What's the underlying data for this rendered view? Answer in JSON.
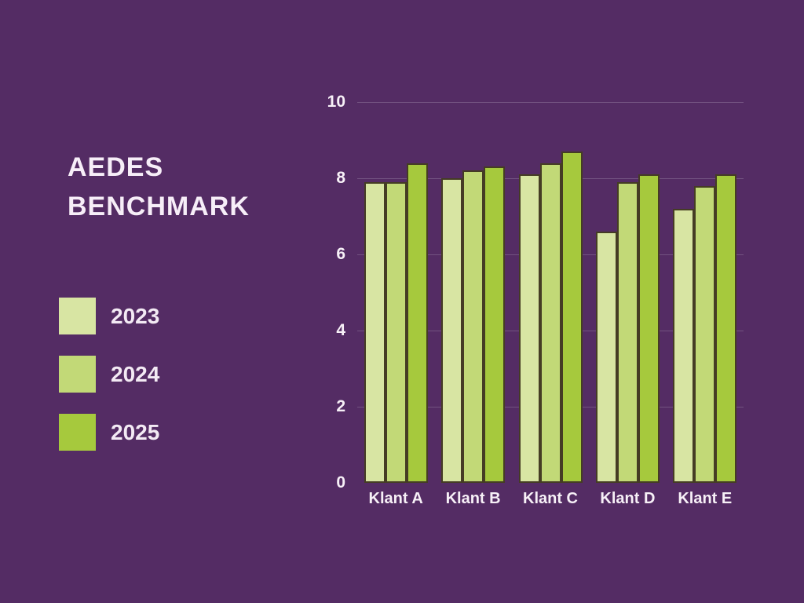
{
  "app": {
    "background_color": "#542c64",
    "text_color": "#f7f0f7"
  },
  "header": {
    "title": "AEDES BENCHMARK",
    "title_lines": [
      "AEDES",
      "BENCHMARK"
    ]
  },
  "chart_data": {
    "type": "bar",
    "title": "AEDES BENCHMARK",
    "categories": [
      "Klant A",
      "Klant B",
      "Klant C",
      "Klant D",
      "Klant E"
    ],
    "series": [
      {
        "name": "2023",
        "color": "#d8e5a3",
        "values": [
          7.9,
          8.0,
          8.1,
          6.6,
          7.2
        ]
      },
      {
        "name": "2024",
        "color": "#c2d977",
        "values": [
          7.9,
          8.2,
          8.4,
          7.9,
          7.8
        ]
      },
      {
        "name": "2025",
        "color": "#a6c93d",
        "values": [
          8.4,
          8.3,
          8.7,
          8.1,
          8.1
        ]
      }
    ],
    "xlabel": "",
    "ylabel": "",
    "ylim": [
      0,
      10
    ],
    "yticks": [
      0,
      2,
      4,
      6,
      8,
      10
    ],
    "grid": true,
    "gridline_color": "rgba(255,255,255,0.18)",
    "bar_border_color": "#453c24",
    "legend_position": "left"
  }
}
